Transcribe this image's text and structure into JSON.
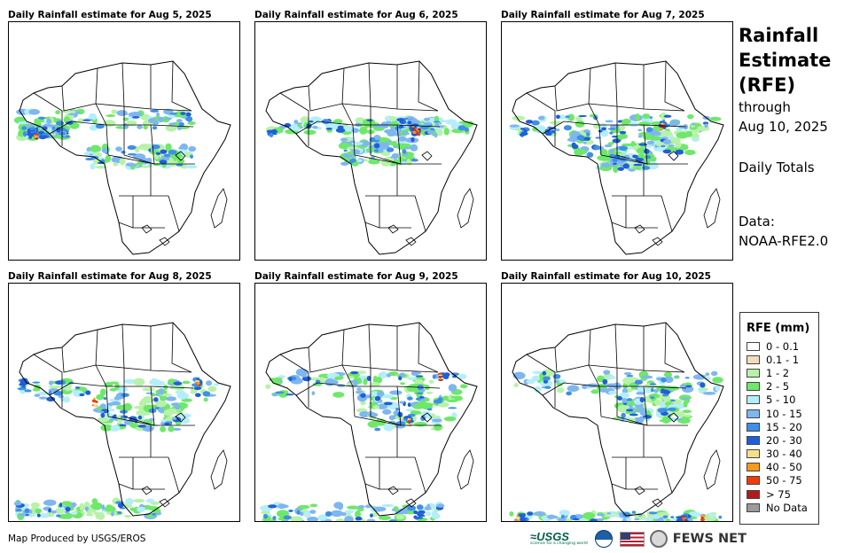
{
  "panels": [
    {
      "title": "Daily Rainfall estimate for Aug 5, 2025"
    },
    {
      "title": "Daily Rainfall estimate for Aug 6, 2025"
    },
    {
      "title": "Daily Rainfall estimate for Aug 7, 2025"
    },
    {
      "title": "Daily Rainfall estimate for Aug 8, 2025"
    },
    {
      "title": "Daily Rainfall estimate for Aug 9, 2025"
    },
    {
      "title": "Daily Rainfall estimate for Aug 10, 2025"
    }
  ],
  "side": {
    "title_line1": "Rainfall",
    "title_line2": "Estimate",
    "title_line3": "(RFE)",
    "through": "through",
    "end_date": "Aug 10, 2025",
    "totals": "Daily Totals",
    "data_label": "Data:",
    "data_source": "NOAA-RFE2.0"
  },
  "legend": {
    "title": "RFE (mm)",
    "items": [
      {
        "label": "0 - 0.1",
        "color": "#ffffff"
      },
      {
        "label": "0.1 - 1",
        "color": "#f2dcc0"
      },
      {
        "label": "1 - 2",
        "color": "#b8f2a8"
      },
      {
        "label": "2 - 5",
        "color": "#6ee86a"
      },
      {
        "label": "5 - 10",
        "color": "#b4eefa"
      },
      {
        "label": "10 - 15",
        "color": "#7fb6f0"
      },
      {
        "label": "15 - 20",
        "color": "#3f8ee8"
      },
      {
        "label": "20 - 30",
        "color": "#1f5fd6"
      },
      {
        "label": "30 - 40",
        "color": "#f7df8a"
      },
      {
        "label": "40 - 50",
        "color": "#f59a1a"
      },
      {
        "label": "50 - 75",
        "color": "#f03c0a"
      },
      {
        "label": "> 75",
        "color": "#b01c1c"
      },
      {
        "label": "No Data",
        "color": "#9a9a9a"
      }
    ]
  },
  "footer": {
    "credit": "Map Produced by USGS/EROS",
    "usgs": "≈USGS",
    "usgs_tagline": "science for a changing world",
    "fews": "FEWS NET"
  }
}
